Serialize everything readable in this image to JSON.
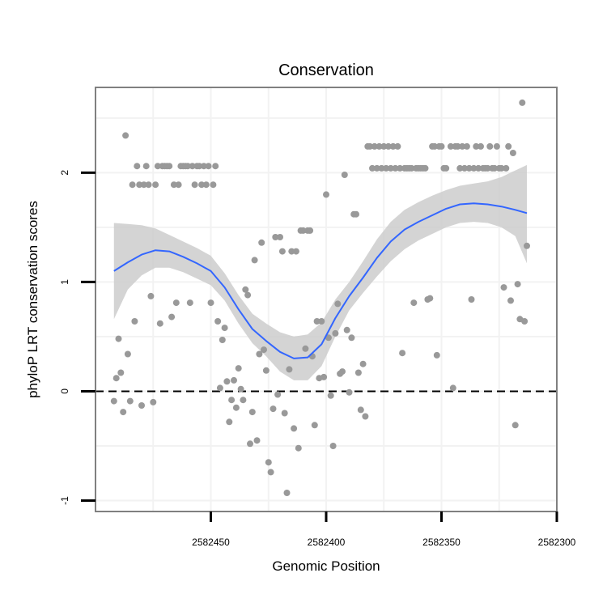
{
  "chart_data": {
    "type": "scatter",
    "title": "Conservation",
    "xlabel": "Genomic Position",
    "ylabel": "phyloP LRT conservation scores",
    "x_reversed": true,
    "xlim": [
      2582500,
      2582300
    ],
    "ylim": [
      -1.1,
      2.78
    ],
    "x_ticks": [
      2582450,
      2582400,
      2582350,
      2582300
    ],
    "x_tick_labels": [
      "2582450",
      "2582400",
      "2582350",
      "2582300"
    ],
    "y_ticks": [
      -1,
      0,
      1,
      2
    ],
    "y_tick_labels": [
      "-1",
      "0",
      "1",
      "2"
    ],
    "grid": true,
    "reference_line": {
      "y": 0,
      "style": "dashed",
      "color": "#000000"
    },
    "colors": {
      "points": "#999999",
      "smooth_line": "#3366FF",
      "confidence_band": "#cccccc",
      "panel_background": "#ffffff",
      "panel_border": "#808080",
      "grid": "#f2f2f2"
    },
    "points": [
      [
        2582492,
        -0.09
      ],
      [
        2582491,
        0.12
      ],
      [
        2582490,
        0.48
      ],
      [
        2582489,
        0.17
      ],
      [
        2582488,
        -0.19
      ],
      [
        2582487,
        2.34
      ],
      [
        2582486,
        0.34
      ],
      [
        2582485,
        -0.09
      ],
      [
        2582484,
        1.89
      ],
      [
        2582483,
        0.64
      ],
      [
        2582482,
        2.06
      ],
      [
        2582481,
        1.89
      ],
      [
        2582480,
        -0.13
      ],
      [
        2582479,
        1.89
      ],
      [
        2582478,
        2.06
      ],
      [
        2582477,
        1.89
      ],
      [
        2582476,
        0.87
      ],
      [
        2582475,
        -0.1
      ],
      [
        2582474,
        1.89
      ],
      [
        2582473,
        2.06
      ],
      [
        2582472,
        0.62
      ],
      [
        2582471,
        2.06
      ],
      [
        2582470,
        2.06
      ],
      [
        2582469,
        2.06
      ],
      [
        2582468,
        2.06
      ],
      [
        2582467,
        0.68
      ],
      [
        2582466,
        1.89
      ],
      [
        2582465,
        0.81
      ],
      [
        2582464,
        1.89
      ],
      [
        2582463,
        2.06
      ],
      [
        2582462,
        2.06
      ],
      [
        2582461,
        2.06
      ],
      [
        2582460,
        2.06
      ],
      [
        2582459,
        0.81
      ],
      [
        2582458,
        2.06
      ],
      [
        2582457,
        1.89
      ],
      [
        2582456,
        2.06
      ],
      [
        2582455,
        2.06
      ],
      [
        2582454,
        1.89
      ],
      [
        2582453,
        2.06
      ],
      [
        2582452,
        1.89
      ],
      [
        2582451,
        2.06
      ],
      [
        2582450,
        0.81
      ],
      [
        2582449,
        1.89
      ],
      [
        2582448,
        2.06
      ],
      [
        2582447,
        0.64
      ],
      [
        2582446,
        0.03
      ],
      [
        2582445,
        0.47
      ],
      [
        2582444,
        0.58
      ],
      [
        2582443,
        0.09
      ],
      [
        2582442,
        -0.28
      ],
      [
        2582441,
        -0.08
      ],
      [
        2582440,
        0.1
      ],
      [
        2582439,
        -0.15
      ],
      [
        2582438,
        0.21
      ],
      [
        2582437,
        0.02
      ],
      [
        2582436,
        -0.08
      ],
      [
        2582435,
        0.93
      ],
      [
        2582434,
        0.88
      ],
      [
        2582433,
        -0.48
      ],
      [
        2582432,
        -0.19
      ],
      [
        2582431,
        1.2
      ],
      [
        2582430,
        -0.45
      ],
      [
        2582429,
        0.34
      ],
      [
        2582428,
        1.36
      ],
      [
        2582427,
        0.38
      ],
      [
        2582426,
        0.19
      ],
      [
        2582425,
        -0.65
      ],
      [
        2582424,
        -0.74
      ],
      [
        2582423,
        -0.16
      ],
      [
        2582422,
        1.41
      ],
      [
        2582421,
        -0.03
      ],
      [
        2582420,
        1.41
      ],
      [
        2582419,
        1.28
      ],
      [
        2582418,
        -0.2
      ],
      [
        2582417,
        -0.93
      ],
      [
        2582416,
        0.2
      ],
      [
        2582415,
        1.28
      ],
      [
        2582414,
        -0.34
      ],
      [
        2582413,
        1.28
      ],
      [
        2582412,
        -0.52
      ],
      [
        2582411,
        1.47
      ],
      [
        2582410,
        1.47
      ],
      [
        2582409,
        0.39
      ],
      [
        2582408,
        1.47
      ],
      [
        2582407,
        1.47
      ],
      [
        2582406,
        0.32
      ],
      [
        2582405,
        -0.31
      ],
      [
        2582404,
        0.64
      ],
      [
        2582403,
        0.12
      ],
      [
        2582402,
        0.64
      ],
      [
        2582401,
        0.13
      ],
      [
        2582400,
        1.8
      ],
      [
        2582399,
        0.49
      ],
      [
        2582398,
        -0.04
      ],
      [
        2582397,
        -0.5
      ],
      [
        2582396,
        0.53
      ],
      [
        2582395,
        0.8
      ],
      [
        2582394,
        0.16
      ],
      [
        2582393,
        0.18
      ],
      [
        2582392,
        1.98
      ],
      [
        2582391,
        0.56
      ],
      [
        2582390,
        -0.01
      ],
      [
        2582389,
        0.49
      ],
      [
        2582388,
        1.62
      ],
      [
        2582387,
        1.62
      ],
      [
        2582386,
        0.17
      ],
      [
        2582385,
        -0.17
      ],
      [
        2582384,
        0.25
      ],
      [
        2582383,
        -0.23
      ],
      [
        2582382,
        2.24
      ],
      [
        2582381,
        2.24
      ],
      [
        2582380,
        2.04
      ],
      [
        2582379,
        2.24
      ],
      [
        2582378,
        2.04
      ],
      [
        2582377,
        2.24
      ],
      [
        2582376,
        2.04
      ],
      [
        2582375,
        2.24
      ],
      [
        2582374,
        2.04
      ],
      [
        2582373,
        2.24
      ],
      [
        2582372,
        2.04
      ],
      [
        2582371,
        2.24
      ],
      [
        2582370,
        2.04
      ],
      [
        2582369,
        2.24
      ],
      [
        2582368,
        2.04
      ],
      [
        2582367,
        0.35
      ],
      [
        2582366,
        2.04
      ],
      [
        2582365,
        2.04
      ],
      [
        2582364,
        2.04
      ],
      [
        2582363,
        2.04
      ],
      [
        2582362,
        0.81
      ],
      [
        2582361,
        2.04
      ],
      [
        2582360,
        2.04
      ],
      [
        2582359,
        2.04
      ],
      [
        2582358,
        2.04
      ],
      [
        2582357,
        2.04
      ],
      [
        2582356,
        0.84
      ],
      [
        2582355,
        0.85
      ],
      [
        2582354,
        2.24
      ],
      [
        2582353,
        2.24
      ],
      [
        2582352,
        0.33
      ],
      [
        2582351,
        2.24
      ],
      [
        2582350,
        2.24
      ],
      [
        2582349,
        2.04
      ],
      [
        2582348,
        2.04
      ],
      [
        2582346,
        2.24
      ],
      [
        2582345,
        0.03
      ],
      [
        2582344,
        2.24
      ],
      [
        2582343,
        2.24
      ],
      [
        2582342,
        2.04
      ],
      [
        2582341,
        2.24
      ],
      [
        2582340,
        2.04
      ],
      [
        2582339,
        2.24
      ],
      [
        2582338,
        2.04
      ],
      [
        2582337,
        0.84
      ],
      [
        2582336,
        2.04
      ],
      [
        2582335,
        2.24
      ],
      [
        2582334,
        2.04
      ],
      [
        2582333,
        2.24
      ],
      [
        2582332,
        2.04
      ],
      [
        2582331,
        2.04
      ],
      [
        2582330,
        2.04
      ],
      [
        2582329,
        2.24
      ],
      [
        2582328,
        2.04
      ],
      [
        2582327,
        2.04
      ],
      [
        2582326,
        2.24
      ],
      [
        2582325,
        2.04
      ],
      [
        2582324,
        2.04
      ],
      [
        2582323,
        0.95
      ],
      [
        2582322,
        2.04
      ],
      [
        2582321,
        2.24
      ],
      [
        2582320,
        0.83
      ],
      [
        2582319,
        2.18
      ],
      [
        2582318,
        -0.31
      ],
      [
        2582317,
        0.98
      ],
      [
        2582316,
        0.66
      ],
      [
        2582315,
        2.64
      ],
      [
        2582314,
        0.64
      ],
      [
        2582313,
        1.33
      ]
    ],
    "smooth": {
      "x": [
        2582492,
        2582486,
        2582480,
        2582474,
        2582468,
        2582462,
        2582456,
        2582450,
        2582444,
        2582438,
        2582432,
        2582426,
        2582420,
        2582414,
        2582408,
        2582402,
        2582396,
        2582390,
        2582384,
        2582378,
        2582372,
        2582366,
        2582360,
        2582354,
        2582348,
        2582342,
        2582336,
        2582330,
        2582324,
        2582318,
        2582313
      ],
      "y": [
        1.1,
        1.18,
        1.25,
        1.29,
        1.28,
        1.23,
        1.17,
        1.1,
        0.95,
        0.75,
        0.57,
        0.46,
        0.36,
        0.3,
        0.31,
        0.43,
        0.67,
        0.87,
        1.04,
        1.22,
        1.37,
        1.48,
        1.55,
        1.61,
        1.67,
        1.71,
        1.72,
        1.71,
        1.69,
        1.66,
        1.63
      ],
      "lower": [
        0.66,
        0.93,
        1.06,
        1.13,
        1.13,
        1.09,
        1.03,
        0.97,
        0.83,
        0.62,
        0.44,
        0.32,
        0.18,
        0.1,
        0.1,
        0.23,
        0.5,
        0.74,
        0.9,
        1.05,
        1.19,
        1.3,
        1.38,
        1.44,
        1.5,
        1.54,
        1.55,
        1.54,
        1.5,
        1.42,
        1.17
      ],
      "upper": [
        1.54,
        1.53,
        1.52,
        1.49,
        1.43,
        1.37,
        1.31,
        1.24,
        1.08,
        0.88,
        0.71,
        0.62,
        0.54,
        0.5,
        0.52,
        0.63,
        0.84,
        1.0,
        1.19,
        1.39,
        1.55,
        1.66,
        1.73,
        1.79,
        1.84,
        1.88,
        1.9,
        1.92,
        1.96,
        2.02,
        2.07
      ]
    }
  }
}
